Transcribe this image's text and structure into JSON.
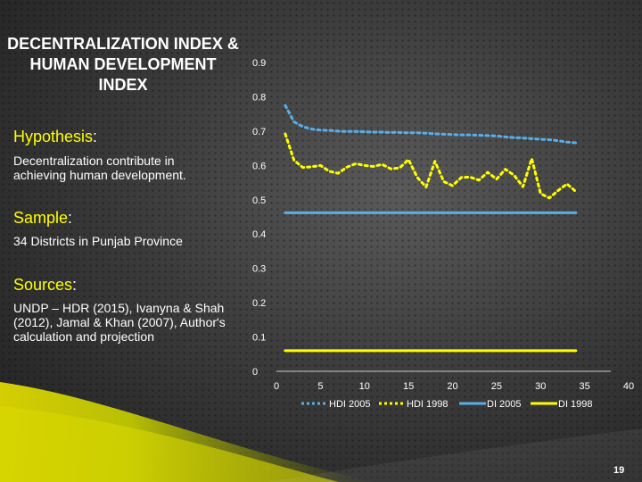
{
  "slide": {
    "title": "DECENTRALIZATION INDEX &\nHUMAN DEVELOPMENT\nINDEX",
    "page_number": "19",
    "highlight_color": "#ffff00"
  },
  "sections": {
    "hypothesis": {
      "heading": "Hypothesis",
      "colon": ":",
      "text": "Decentralization contribute in achieving human development."
    },
    "sample": {
      "heading": "Sample",
      "colon": ":",
      "text": "34 Districts in Punjab Province"
    },
    "sources": {
      "heading": "Sources",
      "colon": ":",
      "text": "UNDP – HDR (2015), Ivanyna & Shah (2012), Jamal & Khan (2007), Author's calculation and projection"
    }
  },
  "chart_data": {
    "type": "line",
    "title": "",
    "xlabel": "",
    "ylabel": "",
    "xlim": [
      0,
      40
    ],
    "ylim": [
      0,
      0.9
    ],
    "x_ticks": [
      "0",
      "5",
      "10",
      "15",
      "20",
      "25",
      "30",
      "35",
      "40"
    ],
    "y_ticks": [
      "0",
      "0.1",
      "0.2",
      "0.3",
      "0.4",
      "0.5",
      "0.6",
      "0.7",
      "0.8",
      "0.9"
    ],
    "grid": false,
    "legend_position": "bottom",
    "x": [
      1,
      2,
      3,
      4,
      5,
      6,
      7,
      8,
      9,
      10,
      11,
      12,
      13,
      14,
      15,
      16,
      17,
      18,
      19,
      20,
      21,
      22,
      23,
      24,
      25,
      26,
      27,
      28,
      29,
      30,
      31,
      32,
      33,
      34
    ],
    "series": [
      {
        "name": "HDI 2005",
        "color": "#5aaee8",
        "dash": "dashed",
        "values": [
          0.775,
          0.727,
          0.713,
          0.706,
          0.703,
          0.702,
          0.7,
          0.699,
          0.699,
          0.698,
          0.697,
          0.697,
          0.696,
          0.696,
          0.695,
          0.695,
          0.694,
          0.692,
          0.691,
          0.69,
          0.689,
          0.689,
          0.688,
          0.687,
          0.686,
          0.683,
          0.681,
          0.68,
          0.678,
          0.676,
          0.675,
          0.672,
          0.668,
          0.666
        ]
      },
      {
        "name": "HDI 1998",
        "color": "#ffff00",
        "dash": "dashed",
        "values": [
          0.692,
          0.615,
          0.594,
          0.596,
          0.6,
          0.583,
          0.577,
          0.595,
          0.605,
          0.6,
          0.597,
          0.603,
          0.59,
          0.593,
          0.617,
          0.565,
          0.537,
          0.612,
          0.553,
          0.541,
          0.565,
          0.566,
          0.557,
          0.58,
          0.56,
          0.589,
          0.571,
          0.538,
          0.62,
          0.518,
          0.505,
          0.527,
          0.546,
          0.524
        ]
      },
      {
        "name": "DI 2005",
        "color": "#5aaee8",
        "dash": "solid",
        "values": [
          0.462,
          0.462,
          0.462,
          0.462,
          0.462,
          0.462,
          0.462,
          0.462,
          0.462,
          0.462,
          0.462,
          0.462,
          0.462,
          0.462,
          0.462,
          0.462,
          0.462,
          0.462,
          0.462,
          0.462,
          0.462,
          0.462,
          0.462,
          0.462,
          0.462,
          0.462,
          0.462,
          0.462,
          0.462,
          0.462,
          0.462,
          0.462,
          0.462,
          0.462
        ]
      },
      {
        "name": "DI 1998",
        "color": "#ffff00",
        "dash": "solid",
        "values": [
          0.06,
          0.06,
          0.06,
          0.06,
          0.06,
          0.06,
          0.06,
          0.06,
          0.06,
          0.06,
          0.06,
          0.06,
          0.06,
          0.06,
          0.06,
          0.06,
          0.06,
          0.06,
          0.06,
          0.06,
          0.06,
          0.06,
          0.06,
          0.06,
          0.06,
          0.06,
          0.06,
          0.06,
          0.06,
          0.06,
          0.06,
          0.06,
          0.06,
          0.06
        ]
      }
    ]
  }
}
